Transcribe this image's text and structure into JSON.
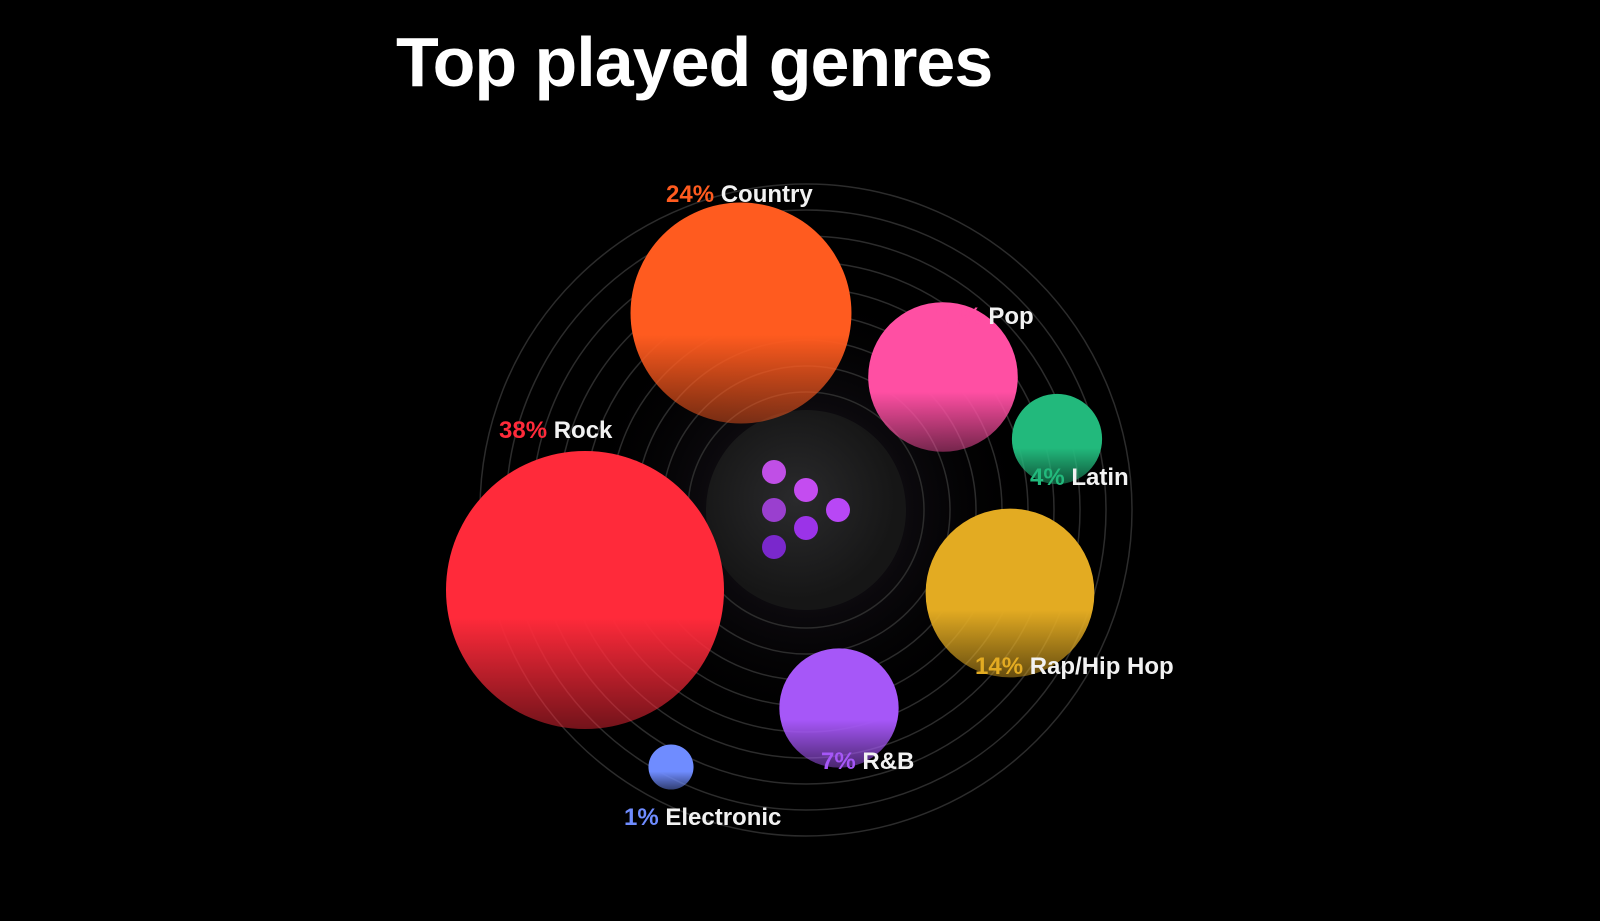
{
  "chart_data": {
    "type": "bubble",
    "title": "Top played genres",
    "unit": "%",
    "series": [
      {
        "name": "Rock",
        "value": 38,
        "color": "#ff2a3a"
      },
      {
        "name": "Country",
        "value": 24,
        "color": "#ff5b1f"
      },
      {
        "name": "Rap/Hip Hop",
        "value": 14,
        "color": "#e3ab22"
      },
      {
        "name": "Pop",
        "value": 11,
        "color": "#ff4fa3"
      },
      {
        "name": "R&B",
        "value": 7,
        "color": "#a657f8"
      },
      {
        "name": "Latin",
        "value": 4,
        "color": "#22b97c"
      },
      {
        "name": "Electronic",
        "value": 1,
        "color": "#6f8cff"
      }
    ],
    "center_icon": "dots-play-logo-icon",
    "background": "#000000"
  }
}
